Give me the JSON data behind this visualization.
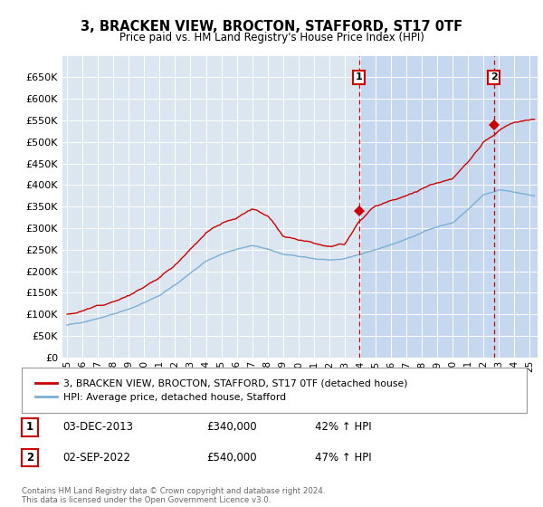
{
  "title": "3, BRACKEN VIEW, BROCTON, STAFFORD, ST17 0TF",
  "subtitle": "Price paid vs. HM Land Registry's House Price Index (HPI)",
  "plot_bg_color": "#dce6f0",
  "highlight_bg_color": "#c5d8f0",
  "red_color": "#cc0000",
  "blue_color": "#7bafd4",
  "ylim": [
    0,
    700000
  ],
  "yticks": [
    0,
    50000,
    100000,
    150000,
    200000,
    250000,
    300000,
    350000,
    400000,
    450000,
    500000,
    550000,
    600000,
    650000
  ],
  "xlim_start": 1994.7,
  "xlim_end": 2025.5,
  "marker1_x": 2013.92,
  "marker1_y": 340000,
  "marker1_label": "1",
  "marker2_x": 2022.67,
  "marker2_y": 540000,
  "marker2_label": "2",
  "legend_line1": "3, BRACKEN VIEW, BROCTON, STAFFORD, ST17 0TF (detached house)",
  "legend_line2": "HPI: Average price, detached house, Stafford",
  "table_row1": [
    "1",
    "03-DEC-2013",
    "£340,000",
    "42% ↑ HPI"
  ],
  "table_row2": [
    "2",
    "02-SEP-2022",
    "£540,000",
    "47% ↑ HPI"
  ],
  "footer": "Contains HM Land Registry data © Crown copyright and database right 2024.\nThis data is licensed under the Open Government Licence v3.0."
}
